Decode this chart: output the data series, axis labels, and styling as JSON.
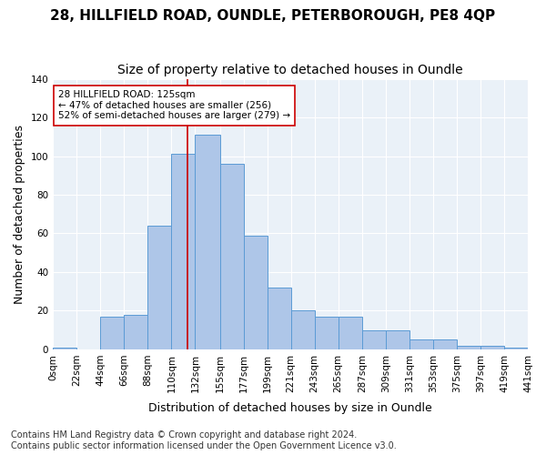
{
  "title1": "28, HILLFIELD ROAD, OUNDLE, PETERBOROUGH, PE8 4QP",
  "title2": "Size of property relative to detached houses in Oundle",
  "xlabel": "Distribution of detached houses by size in Oundle",
  "ylabel": "Number of detached properties",
  "footnote": "Contains HM Land Registry data © Crown copyright and database right 2024.\nContains public sector information licensed under the Open Government Licence v3.0.",
  "bins": [
    0,
    22,
    44,
    66,
    88,
    110,
    132,
    155,
    177,
    199,
    221,
    243,
    265,
    287,
    309,
    331,
    353,
    375,
    397,
    419,
    441
  ],
  "bin_labels": [
    "0sqm",
    "22sqm",
    "44sqm",
    "66sqm",
    "88sqm",
    "110sqm",
    "132sqm",
    "155sqm",
    "177sqm",
    "199sqm",
    "221sqm",
    "243sqm",
    "265sqm",
    "287sqm",
    "309sqm",
    "331sqm",
    "353sqm",
    "375sqm",
    "397sqm",
    "419sqm",
    "441sqm"
  ],
  "bar_heights": [
    1,
    0,
    17,
    18,
    64,
    101,
    111,
    96,
    59,
    32,
    20,
    17,
    17,
    10,
    10,
    5,
    5,
    2,
    2,
    1
  ],
  "bar_color": "#aec6e8",
  "bar_edge_color": "#5b9bd5",
  "background_color": "#eaf1f8",
  "vline_x": 125,
  "vline_color": "#cc0000",
  "annotation_text": "28 HILLFIELD ROAD: 125sqm\n← 47% of detached houses are smaller (256)\n52% of semi-detached houses are larger (279) →",
  "annotation_box_color": "white",
  "annotation_box_edge": "#cc0000",
  "ylim": [
    0,
    140
  ],
  "yticks": [
    0,
    20,
    40,
    60,
    80,
    100,
    120,
    140
  ],
  "grid_color": "#ffffff",
  "title1_fontsize": 11,
  "title2_fontsize": 10,
  "xlabel_fontsize": 9,
  "ylabel_fontsize": 9,
  "tick_fontsize": 7.5,
  "footnote_fontsize": 7
}
